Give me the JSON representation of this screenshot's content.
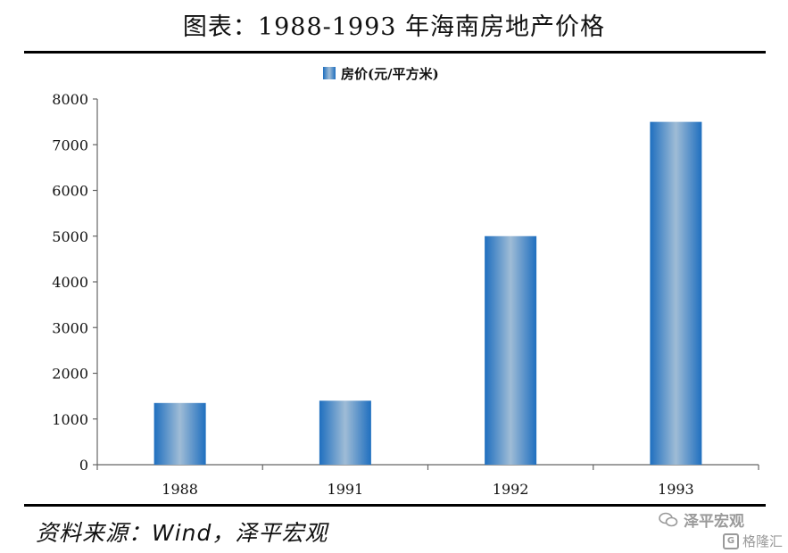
{
  "page": {
    "title": "图表：1988-1993 年海南房地产价格",
    "source": "资料来源：Wind，泽平宏观"
  },
  "watermark": {
    "name": "泽平宏观",
    "platform": "格隆汇",
    "icon_wechat": "wechat-icon",
    "icon_g": "g-logo-icon"
  },
  "chart_data": {
    "type": "bar",
    "categories": [
      "1988",
      "1991",
      "1992",
      "1993"
    ],
    "series": [
      {
        "name": "房价(元/平方米)",
        "values": [
          1350,
          1400,
          5000,
          7500
        ]
      }
    ],
    "ylim": [
      0,
      8000
    ],
    "yticks": [
      0,
      1000,
      2000,
      3000,
      4000,
      5000,
      6000,
      7000,
      8000
    ],
    "legend": "top-center",
    "grid": false,
    "colors": {
      "bar_edge": "#1f6fbf",
      "bar_center": "#9fbcd6"
    }
  }
}
